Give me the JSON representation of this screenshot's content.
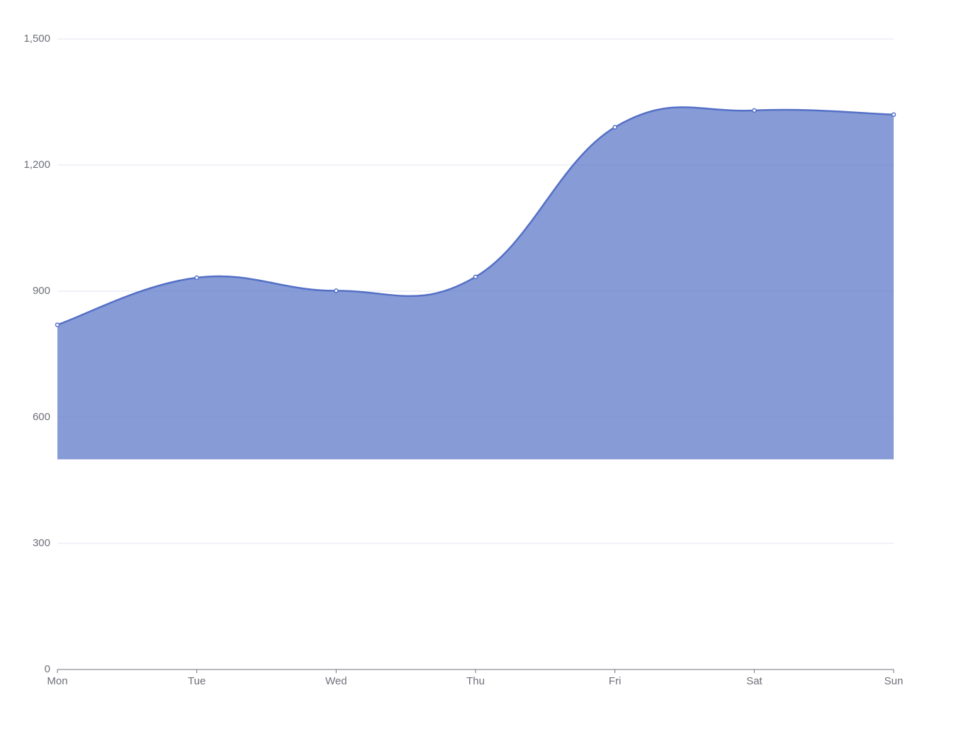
{
  "chart_data": {
    "type": "area",
    "categories": [
      "Mon",
      "Tue",
      "Wed",
      "Thu",
      "Fri",
      "Sat",
      "Sun"
    ],
    "values": [
      820,
      932,
      901,
      934,
      1290,
      1330,
      1320
    ],
    "color": "#5470c6",
    "smooth": true,
    "area_origin": 500,
    "ylim": [
      0,
      1500
    ],
    "yticks": [
      0,
      300,
      600,
      900,
      {
        "value": 1200,
        "label": "1,200"
      },
      {
        "value": 1500,
        "label": "1,500"
      }
    ],
    "grid": true
  }
}
